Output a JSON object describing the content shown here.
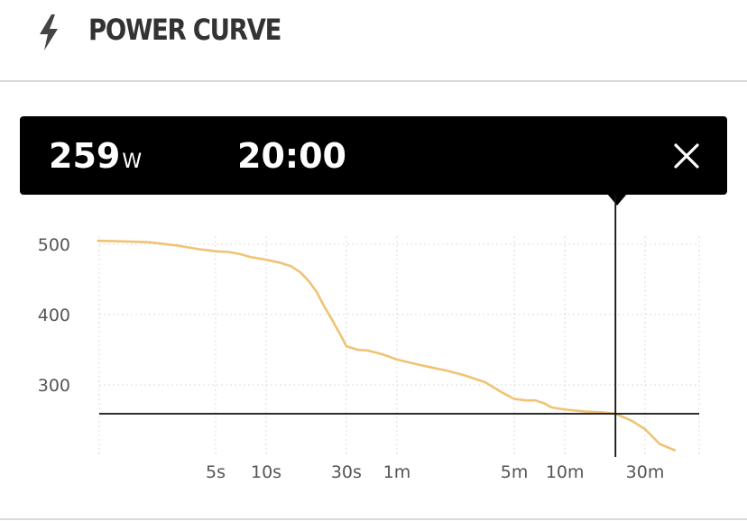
{
  "header": {
    "title": "POWER CURVE",
    "icon": "lightning-bolt-icon"
  },
  "tooltip": {
    "power_value": "259",
    "power_unit": "W",
    "duration": "20:00",
    "close_icon": "close-icon"
  },
  "colors": {
    "curve": "#f0c374",
    "tooltip_bg": "#000000",
    "grid": "#dddddd"
  },
  "chart_data": {
    "type": "line",
    "x_scale": "log",
    "x_unit": "seconds",
    "x_ticks": [
      {
        "label": "5s",
        "value": 5
      },
      {
        "label": "10s",
        "value": 10
      },
      {
        "label": "30s",
        "value": 30
      },
      {
        "label": "1m",
        "value": 60
      },
      {
        "label": "5m",
        "value": 300
      },
      {
        "label": "10m",
        "value": 600
      },
      {
        "label": "30m",
        "value": 1800
      }
    ],
    "y_ticks": [
      300,
      400,
      500
    ],
    "ylabel": "",
    "xlabel": "",
    "grid": true,
    "series": [
      {
        "points": [
          [
            1,
            505
          ],
          [
            1.5,
            504
          ],
          [
            2,
            503
          ],
          [
            3,
            498
          ],
          [
            4,
            493
          ],
          [
            5,
            490
          ],
          [
            6,
            489
          ],
          [
            7,
            486
          ],
          [
            8,
            482
          ],
          [
            10,
            478
          ],
          [
            12,
            474
          ],
          [
            14,
            469
          ],
          [
            16,
            460
          ],
          [
            18,
            447
          ],
          [
            20,
            432
          ],
          [
            22,
            413
          ],
          [
            25,
            390
          ],
          [
            28,
            369
          ],
          [
            30,
            355
          ],
          [
            35,
            350
          ],
          [
            40,
            349
          ],
          [
            45,
            346
          ],
          [
            50,
            343
          ],
          [
            60,
            336
          ],
          [
            80,
            329
          ],
          [
            100,
            324
          ],
          [
            120,
            320
          ],
          [
            150,
            314
          ],
          [
            200,
            304
          ],
          [
            250,
            290
          ],
          [
            300,
            280
          ],
          [
            350,
            278
          ],
          [
            400,
            278
          ],
          [
            450,
            274
          ],
          [
            500,
            268
          ],
          [
            600,
            265
          ],
          [
            800,
            262
          ],
          [
            1000,
            261
          ],
          [
            1200,
            259
          ],
          [
            1500,
            249
          ],
          [
            1800,
            237
          ],
          [
            2200,
            216
          ],
          [
            2700,
            207
          ]
        ]
      }
    ],
    "crosshair": {
      "x": 1200,
      "y": 259
    }
  }
}
